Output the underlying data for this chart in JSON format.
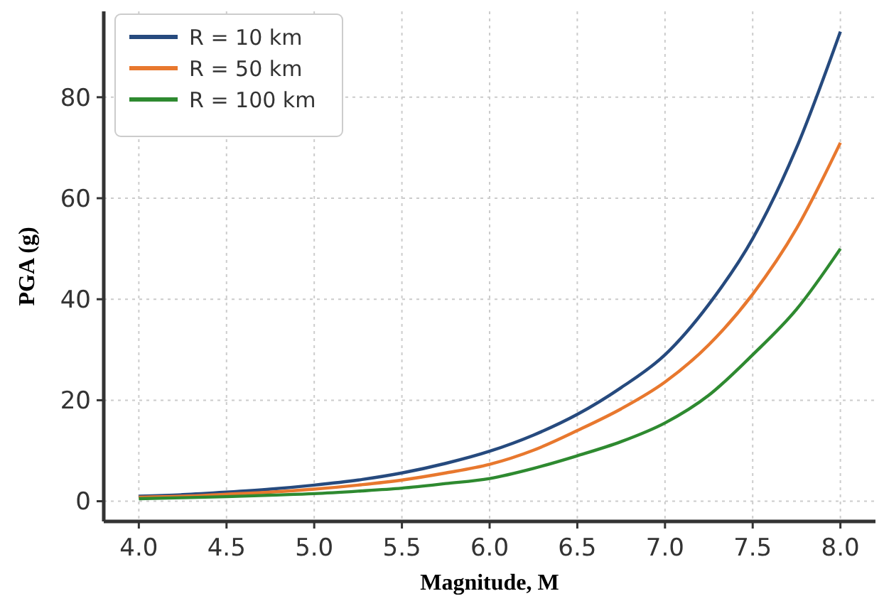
{
  "chart_data": {
    "type": "line",
    "xlabel": "Magnitude, M",
    "ylabel": "PGA (g)",
    "x": [
      4.0,
      4.25,
      4.5,
      4.75,
      5.0,
      5.25,
      5.5,
      5.75,
      6.0,
      6.25,
      6.5,
      6.75,
      7.0,
      7.25,
      7.5,
      7.75,
      8.0
    ],
    "series": [
      {
        "name": "R = 10 km",
        "color": "#264a7e",
        "values": [
          1.0,
          1.3,
          1.8,
          2.4,
          3.2,
          4.2,
          5.6,
          7.5,
          9.9,
          13.1,
          17.2,
          22.5,
          29,
          39,
          52,
          70,
          93
        ]
      },
      {
        "name": "R = 50 km",
        "color": "#e8782e",
        "values": [
          0.8,
          1.0,
          1.4,
          1.8,
          2.4,
          3.2,
          4.2,
          5.6,
          7.3,
          10.1,
          14,
          18.3,
          23.6,
          31,
          41,
          54,
          71
        ]
      },
      {
        "name": "R = 100 km",
        "color": "#2e8a30",
        "values": [
          0.5,
          0.7,
          0.9,
          1.2,
          1.5,
          2.0,
          2.6,
          3.5,
          4.5,
          6.5,
          9,
          11.8,
          15.5,
          21,
          29,
          38,
          50
        ]
      }
    ],
    "xlim": [
      3.8,
      8.2
    ],
    "xticks": [
      {
        "value": 4,
        "label": "4.0"
      },
      {
        "value": 4.5,
        "label": "4.5"
      },
      {
        "value": 5,
        "label": "5.0"
      },
      {
        "value": 5.5,
        "label": "5.5"
      },
      {
        "value": 6,
        "label": "6.0"
      },
      {
        "value": 6.5,
        "label": "6.5"
      },
      {
        "value": 7,
        "label": "7.0"
      },
      {
        "value": 7.5,
        "label": "7.5"
      },
      {
        "value": 8,
        "label": "8.0"
      }
    ],
    "ylim": [
      -4,
      97
    ],
    "yticks": [
      0,
      20,
      40,
      60,
      80
    ],
    "grid": true,
    "legend": "top left",
    "line_style": "solid",
    "marker": "none"
  }
}
